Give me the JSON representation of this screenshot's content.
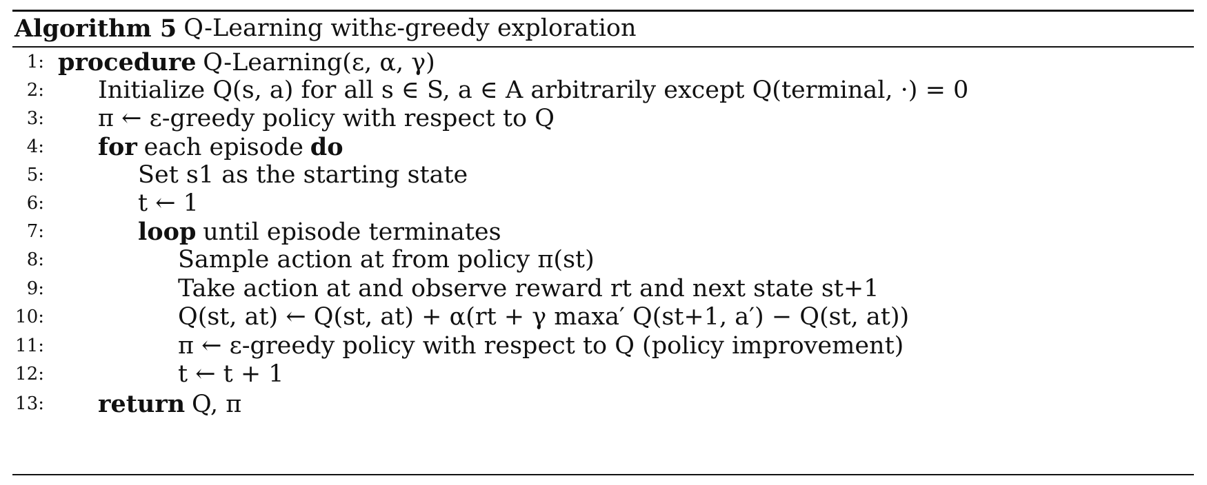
{
  "caption": {
    "label": "Algorithm 5",
    "title": "Q-Learning withε-greedy exploration"
  },
  "lines": [
    {
      "num": "1:",
      "keyword": "procedure",
      "text": "Q-Learning(ε, α, γ)"
    },
    {
      "num": "2:",
      "text": "Initialize Q(s, a) for all s ∈ S, a ∈ A arbitrarily except Q(terminal, ·) = 0"
    },
    {
      "num": "3:",
      "text": "π ← ε-greedy policy with respect to Q"
    },
    {
      "num": "4:",
      "keyword": "for",
      "text": "each episode",
      "keyword_end": "do"
    },
    {
      "num": "5:",
      "text": "Set s1 as the starting state"
    },
    {
      "num": "6:",
      "text": "t ← 1"
    },
    {
      "num": "7:",
      "keyword": "loop",
      "text": "until episode terminates"
    },
    {
      "num": "8:",
      "text": "Sample action at from policy π(st)"
    },
    {
      "num": "9:",
      "text": "Take action at and observe reward rt and next state st+1"
    },
    {
      "num": "10:",
      "text": "Q(st, at) ← Q(st, at) + α(rt + γ maxa′ Q(st+1, a′) − Q(st, at))"
    },
    {
      "num": "11:",
      "text": "π ← ε-greedy policy with respect to Q (policy improvement)"
    },
    {
      "num": "12:",
      "text": "t ← t + 1"
    },
    {
      "num": "13:",
      "keyword": "return",
      "text": "Q, π"
    }
  ]
}
